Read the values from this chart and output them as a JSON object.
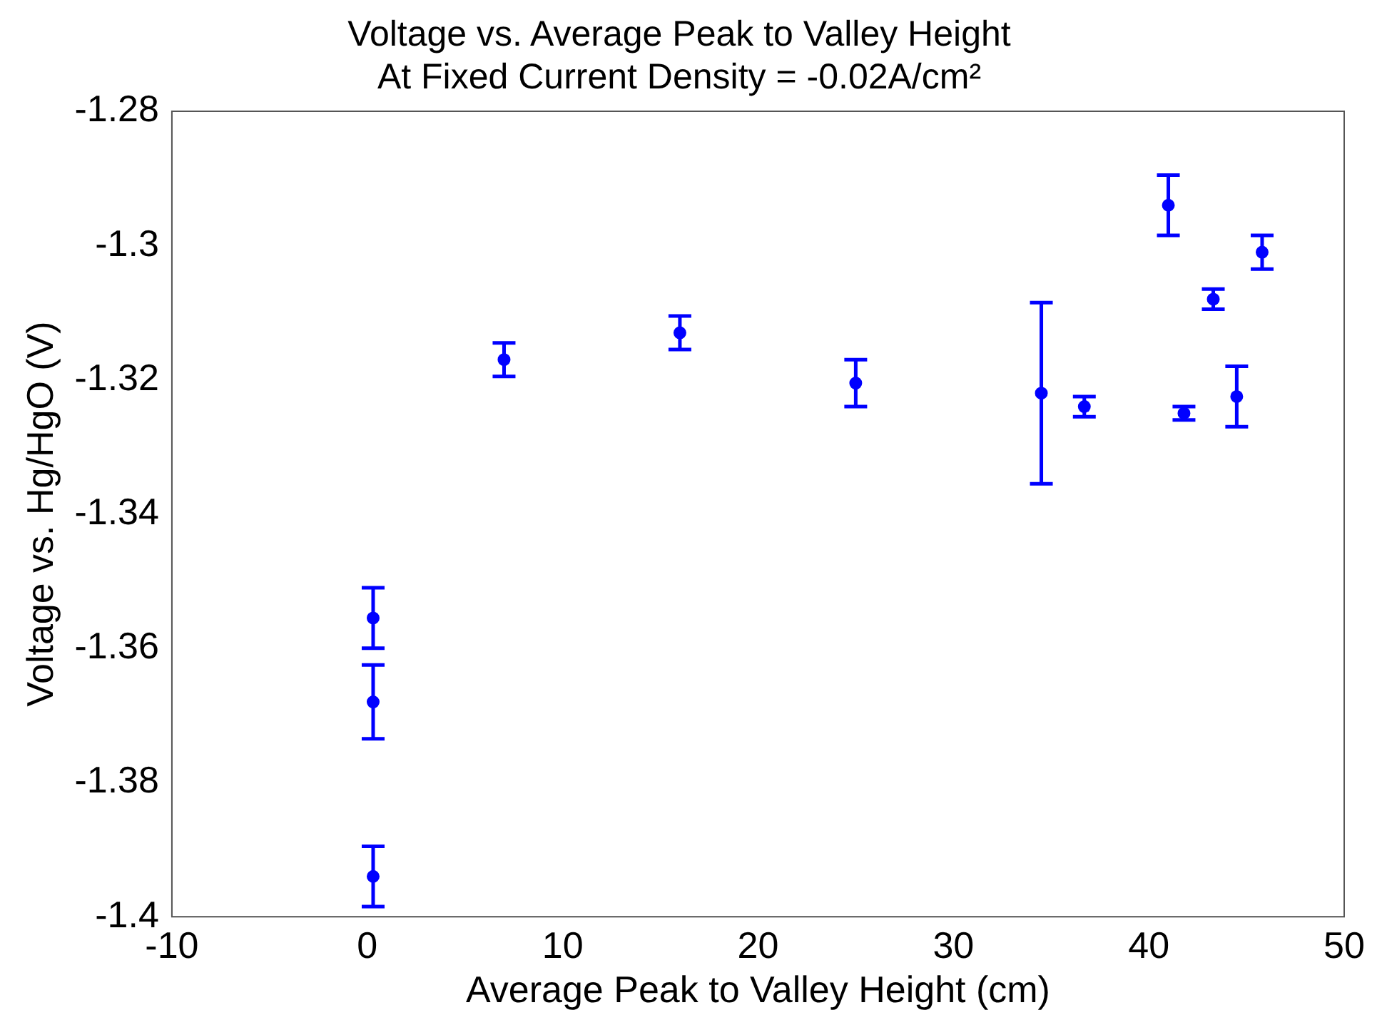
{
  "chart_data": {
    "type": "scatter",
    "title": [
      "Voltage vs. Average Peak to Valley Height",
      "At Fixed Current Density = -0.02A/cm²"
    ],
    "xlabel": "Average Peak to Valley Height (cm)",
    "ylabel": "Voltage vs. Hg/HgO (V)",
    "x": [
      0.3,
      0.3,
      0.3,
      7,
      16,
      25,
      34.5,
      36.7,
      41,
      41.8,
      43.3,
      44.5,
      45.8
    ],
    "series": [
      {
        "color": "#0000ff",
        "values": [
          -1.3555,
          -1.368,
          -1.394,
          -1.317,
          -1.313,
          -1.3205,
          -1.322,
          -1.324,
          -1.294,
          -1.325,
          -1.308,
          -1.3225,
          -1.301
        ],
        "errors": [
          0.0045,
          0.0055,
          0.0045,
          0.0025,
          0.0025,
          0.0035,
          0.0135,
          0.0015,
          0.0045,
          0.001,
          0.0015,
          0.0045,
          0.0025
        ]
      }
    ],
    "xlim": [
      -10,
      50
    ],
    "xticks": [
      -10,
      0,
      10,
      20,
      30,
      40,
      50
    ],
    "ylim": [
      -1.4,
      -1.28
    ],
    "yticks": [
      -1.4,
      -1.38,
      -1.36,
      -1.34,
      -1.32,
      -1.3,
      -1.28
    ],
    "grid": false,
    "legend": false,
    "marker": "circle"
  }
}
